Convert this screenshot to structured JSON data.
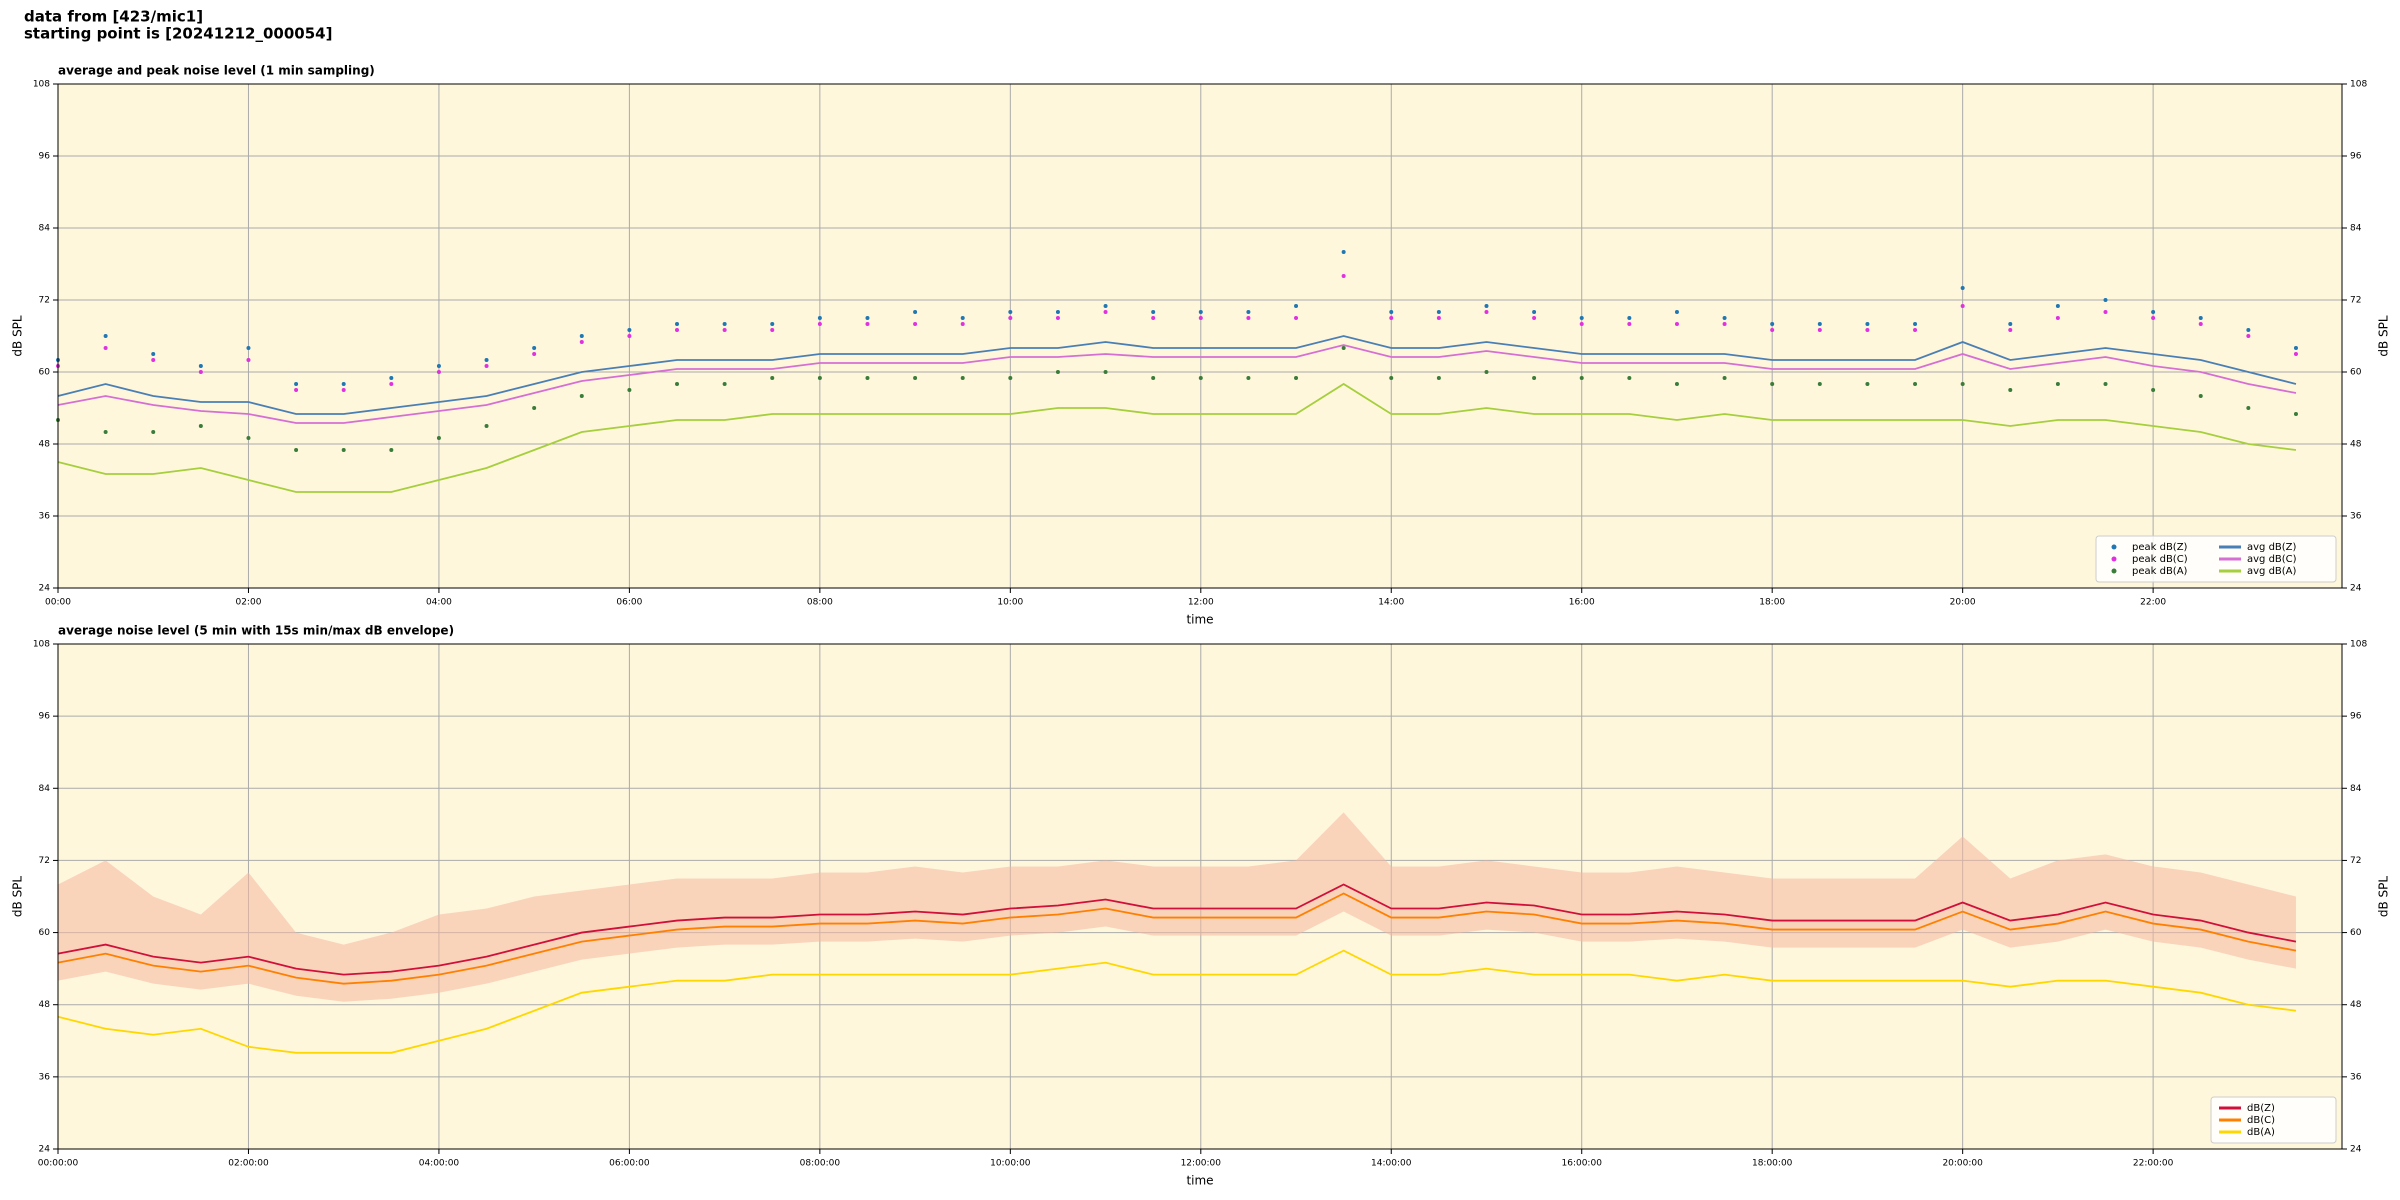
{
  "suptitle": [
    "data from [423/mic1]",
    "starting point is [20241212_000054]"
  ],
  "chart_data": [
    {
      "type": "line",
      "title": "average and peak noise level (1 min sampling)",
      "xlabel": "time",
      "ylabel": "dB SPL",
      "x": [
        "00:00",
        "00:30",
        "01:00",
        "01:30",
        "02:00",
        "02:30",
        "03:00",
        "03:30",
        "04:00",
        "04:30",
        "05:00",
        "05:30",
        "06:00",
        "06:30",
        "07:00",
        "07:30",
        "08:00",
        "08:30",
        "09:00",
        "09:30",
        "10:00",
        "10:30",
        "11:00",
        "11:30",
        "12:00",
        "12:30",
        "13:00",
        "13:30",
        "14:00",
        "14:30",
        "15:00",
        "15:30",
        "16:00",
        "16:30",
        "17:00",
        "17:30",
        "18:00",
        "18:30",
        "19:00",
        "19:30",
        "20:00",
        "20:30",
        "21:00",
        "21:30",
        "22:00",
        "22:30",
        "23:00",
        "23:30"
      ],
      "xlim": [
        "00:00",
        "23:59"
      ],
      "xticks": [
        "00:00",
        "02:00",
        "04:00",
        "06:00",
        "08:00",
        "10:00",
        "12:00",
        "14:00",
        "16:00",
        "18:00",
        "20:00",
        "22:00"
      ],
      "ylim": [
        24,
        108
      ],
      "yticks": [
        24,
        36,
        48,
        60,
        72,
        84,
        96,
        108
      ],
      "grid": true,
      "legend": "lower right",
      "series": [
        {
          "name": "peak dB(Z)",
          "style": "markers",
          "color": "#1f77b4",
          "values": [
            62,
            66,
            63,
            61,
            64,
            58,
            58,
            59,
            61,
            62,
            64,
            66,
            67,
            68,
            68,
            68,
            69,
            69,
            70,
            69,
            70,
            70,
            71,
            70,
            70,
            70,
            71,
            80,
            70,
            70,
            71,
            70,
            69,
            69,
            70,
            69,
            68,
            68,
            68,
            68,
            74,
            68,
            71,
            72,
            70,
            69,
            67,
            64
          ]
        },
        {
          "name": "peak dB(C)",
          "style": "markers",
          "color": "#e030e0",
          "values": [
            61,
            64,
            62,
            60,
            62,
            57,
            57,
            58,
            60,
            61,
            63,
            65,
            66,
            67,
            67,
            67,
            68,
            68,
            68,
            68,
            69,
            69,
            70,
            69,
            69,
            69,
            69,
            76,
            69,
            69,
            70,
            69,
            68,
            68,
            68,
            68,
            67,
            67,
            67,
            67,
            71,
            67,
            69,
            70,
            69,
            68,
            66,
            63
          ]
        },
        {
          "name": "peak dB(A)",
          "style": "markers",
          "color": "#3a7d3a",
          "values": [
            52,
            50,
            50,
            51,
            49,
            47,
            47,
            47,
            49,
            51,
            54,
            56,
            57,
            58,
            58,
            59,
            59,
            59,
            59,
            59,
            59,
            60,
            60,
            59,
            59,
            59,
            59,
            64,
            59,
            59,
            60,
            59,
            59,
            59,
            58,
            59,
            58,
            58,
            58,
            58,
            58,
            57,
            58,
            58,
            57,
            56,
            54,
            53
          ]
        },
        {
          "name": "avg dB(Z)",
          "style": "line",
          "color": "#4a7fb5",
          "values": [
            56,
            58,
            56,
            55,
            55,
            53,
            53,
            54,
            55,
            56,
            58,
            60,
            61,
            62,
            62,
            62,
            63,
            63,
            63,
            63,
            64,
            64,
            65,
            64,
            64,
            64,
            64,
            66,
            64,
            64,
            65,
            64,
            63,
            63,
            63,
            63,
            62,
            62,
            62,
            62,
            65,
            62,
            63,
            64,
            63,
            62,
            60,
            58
          ]
        },
        {
          "name": "avg dB(C)",
          "style": "line",
          "color": "#d66fd4",
          "values": [
            54.5,
            56,
            54.5,
            53.5,
            53,
            51.5,
            51.5,
            52.5,
            53.5,
            54.5,
            56.5,
            58.5,
            59.5,
            60.5,
            60.5,
            60.5,
            61.5,
            61.5,
            61.5,
            61.5,
            62.5,
            62.5,
            63,
            62.5,
            62.5,
            62.5,
            62.5,
            64.5,
            62.5,
            62.5,
            63.5,
            62.5,
            61.5,
            61.5,
            61.5,
            61.5,
            60.5,
            60.5,
            60.5,
            60.5,
            63,
            60.5,
            61.5,
            62.5,
            61,
            60,
            58,
            56.5
          ]
        },
        {
          "name": "avg dB(A)",
          "style": "line",
          "color": "#a5cf3c",
          "values": [
            45,
            43,
            43,
            44,
            42,
            40,
            40,
            40,
            42,
            44,
            47,
            50,
            51,
            52,
            52,
            53,
            53,
            53,
            53,
            53,
            53,
            54,
            54,
            53,
            53,
            53,
            53,
            58,
            53,
            53,
            54,
            53,
            53,
            53,
            52,
            53,
            52,
            52,
            52,
            52,
            52,
            51,
            52,
            52,
            51,
            50,
            48,
            47
          ]
        }
      ]
    },
    {
      "type": "line",
      "title": "average noise level (5 min with 15s min/max dB envelope)",
      "xlabel": "time",
      "ylabel": "dB SPL",
      "x": [
        "00:00:00",
        "00:30:00",
        "01:00:00",
        "01:30:00",
        "02:00:00",
        "02:30:00",
        "03:00:00",
        "03:30:00",
        "04:00:00",
        "04:30:00",
        "05:00:00",
        "05:30:00",
        "06:00:00",
        "06:30:00",
        "07:00:00",
        "07:30:00",
        "08:00:00",
        "08:30:00",
        "09:00:00",
        "09:30:00",
        "10:00:00",
        "10:30:00",
        "11:00:00",
        "11:30:00",
        "12:00:00",
        "12:30:00",
        "13:00:00",
        "13:30:00",
        "14:00:00",
        "14:30:00",
        "15:00:00",
        "15:30:00",
        "16:00:00",
        "16:30:00",
        "17:00:00",
        "17:30:00",
        "18:00:00",
        "18:30:00",
        "19:00:00",
        "19:30:00",
        "20:00:00",
        "20:30:00",
        "21:00:00",
        "21:30:00",
        "22:00:00",
        "22:30:00",
        "23:00:00",
        "23:30:00"
      ],
      "xlim": [
        "00:00:00",
        "23:59:00"
      ],
      "xticks": [
        "00:00:00",
        "02:00:00",
        "04:00:00",
        "06:00:00",
        "08:00:00",
        "10:00:00",
        "12:00:00",
        "14:00:00",
        "16:00:00",
        "18:00:00",
        "20:00:00",
        "22:00:00"
      ],
      "ylim": [
        24,
        108
      ],
      "yticks": [
        24,
        36,
        48,
        60,
        72,
        84,
        96,
        108
      ],
      "grid": true,
      "legend": "lower right",
      "envelope": {
        "color": "#f4b8a0",
        "low": [
          52,
          53.5,
          51.5,
          50.5,
          51.5,
          49.5,
          48.5,
          49,
          50,
          51.5,
          53.5,
          55.5,
          56.5,
          57.5,
          58,
          58,
          58.5,
          58.5,
          59,
          58.5,
          59.5,
          60,
          61,
          59.5,
          59.5,
          59.5,
          59.5,
          63.5,
          59.5,
          59.5,
          60.5,
          60,
          58.5,
          58.5,
          59,
          58.5,
          57.5,
          57.5,
          57.5,
          57.5,
          60.5,
          57.5,
          58.5,
          60.5,
          58.5,
          57.5,
          55.5,
          54
        ],
        "high": [
          68,
          72,
          66,
          63,
          70,
          60,
          58,
          60,
          63,
          64,
          66,
          67,
          68,
          69,
          69,
          69,
          70,
          70,
          71,
          70,
          71,
          71,
          72,
          71,
          71,
          71,
          72,
          80,
          71,
          71,
          72,
          71,
          70,
          70,
          71,
          70,
          69,
          69,
          69,
          69,
          76,
          69,
          72,
          73,
          71,
          70,
          68,
          66
        ]
      },
      "series": [
        {
          "name": "dB(Z)",
          "style": "line",
          "color": "#d0103a",
          "values": [
            56.5,
            58,
            56,
            55,
            56,
            54,
            53,
            53.5,
            54.5,
            56,
            58,
            60,
            61,
            62,
            62.5,
            62.5,
            63,
            63,
            63.5,
            63,
            64,
            64.5,
            65.5,
            64,
            64,
            64,
            64,
            68,
            64,
            64,
            65,
            64.5,
            63,
            63,
            63.5,
            63,
            62,
            62,
            62,
            62,
            65,
            62,
            63,
            65,
            63,
            62,
            60,
            58.5
          ]
        },
        {
          "name": "dB(C)",
          "style": "line",
          "color": "#ff8000",
          "values": [
            55,
            56.5,
            54.5,
            53.5,
            54.5,
            52.5,
            51.5,
            52,
            53,
            54.5,
            56.5,
            58.5,
            59.5,
            60.5,
            61,
            61,
            61.5,
            61.5,
            62,
            61.5,
            62.5,
            63,
            64,
            62.5,
            62.5,
            62.5,
            62.5,
            66.5,
            62.5,
            62.5,
            63.5,
            63,
            61.5,
            61.5,
            62,
            61.5,
            60.5,
            60.5,
            60.5,
            60.5,
            63.5,
            60.5,
            61.5,
            63.5,
            61.5,
            60.5,
            58.5,
            57
          ]
        },
        {
          "name": "dB(A)",
          "style": "line",
          "color": "#ffd700",
          "values": [
            46,
            44,
            43,
            44,
            41,
            40,
            40,
            40,
            42,
            44,
            47,
            50,
            51,
            52,
            52,
            53,
            53,
            53,
            53,
            53,
            53,
            54,
            55,
            53,
            53,
            53,
            53,
            57,
            53,
            53,
            54,
            53,
            53,
            53,
            52,
            53,
            52,
            52,
            52,
            52,
            52,
            51,
            52,
            52,
            51,
            50,
            48,
            47
          ]
        }
      ]
    }
  ]
}
